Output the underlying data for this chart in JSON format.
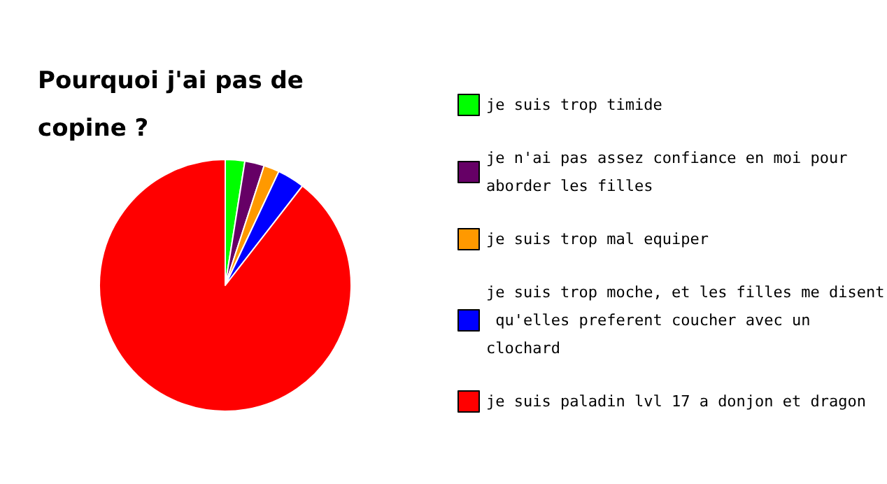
{
  "chart_data": {
    "type": "pie",
    "title": "Pourquoi j'ai pas de copine ?",
    "categories": [
      "je suis trop timide",
      "je n'ai pas assez confiance en moi pour aborder les filles",
      "je suis trop mal equiper",
      "je suis trop moche, et les filles me disent qu'elles preferent coucher avec un clochard",
      "je suis paladin lvl 17 a donjon et dragon"
    ],
    "values": [
      2.5,
      2.5,
      2,
      3.5,
      89.5
    ],
    "colors": [
      "#00ff00",
      "#660066",
      "#ff9900",
      "#0000ff",
      "#ff0000"
    ],
    "legend": "right"
  }
}
